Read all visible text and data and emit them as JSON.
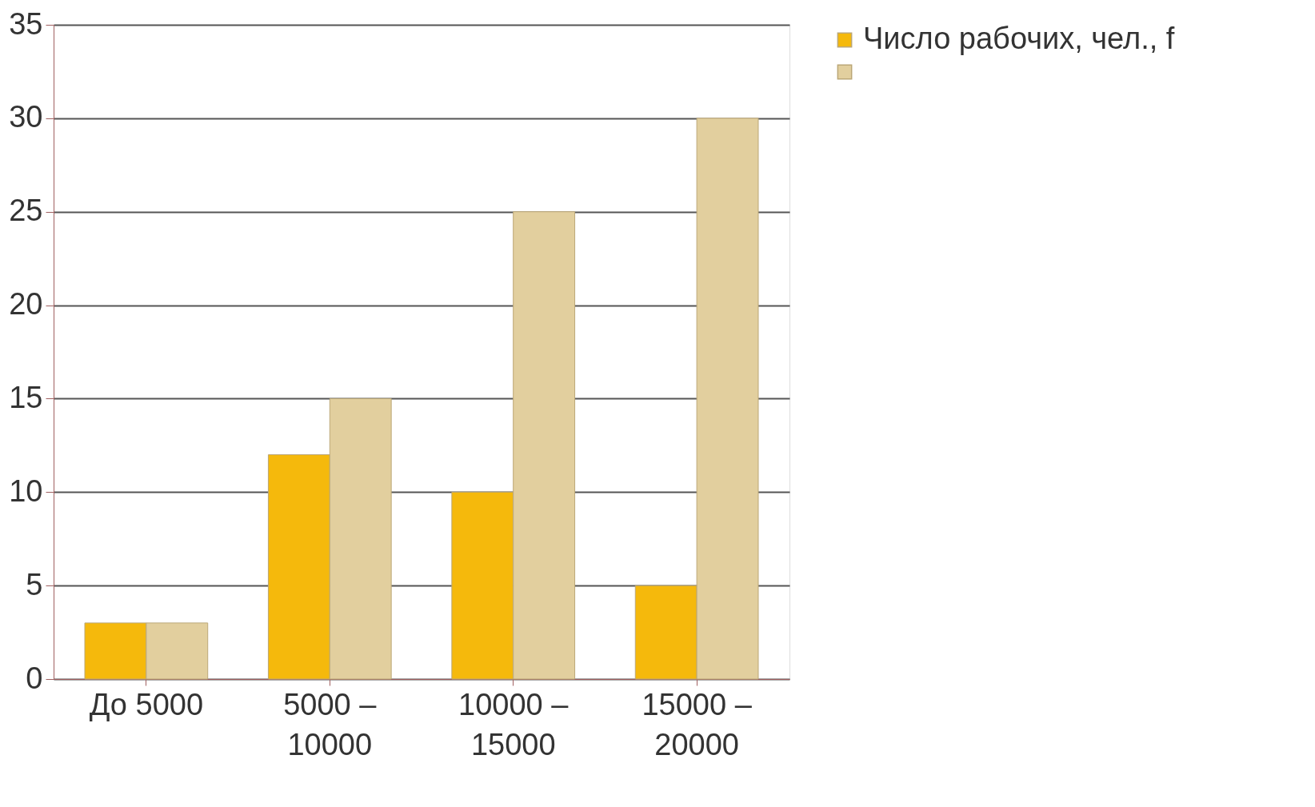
{
  "chart_data": {
    "type": "bar",
    "categories": [
      "До 5000",
      "5000 –\n10000",
      "10000 –\n15000",
      "15000 –\n20000"
    ],
    "series": [
      {
        "name": "Число рабочих, чел., f",
        "color": "#f5b90c",
        "values": [
          3,
          12,
          10,
          5
        ]
      },
      {
        "color": "#e2cf9e",
        "values": [
          3,
          15,
          25,
          30
        ]
      }
    ],
    "ylim": [
      0,
      35
    ],
    "yticks": [
      0,
      5,
      10,
      15,
      20,
      25,
      30,
      35
    ],
    "grid": "y",
    "legend": "right"
  }
}
